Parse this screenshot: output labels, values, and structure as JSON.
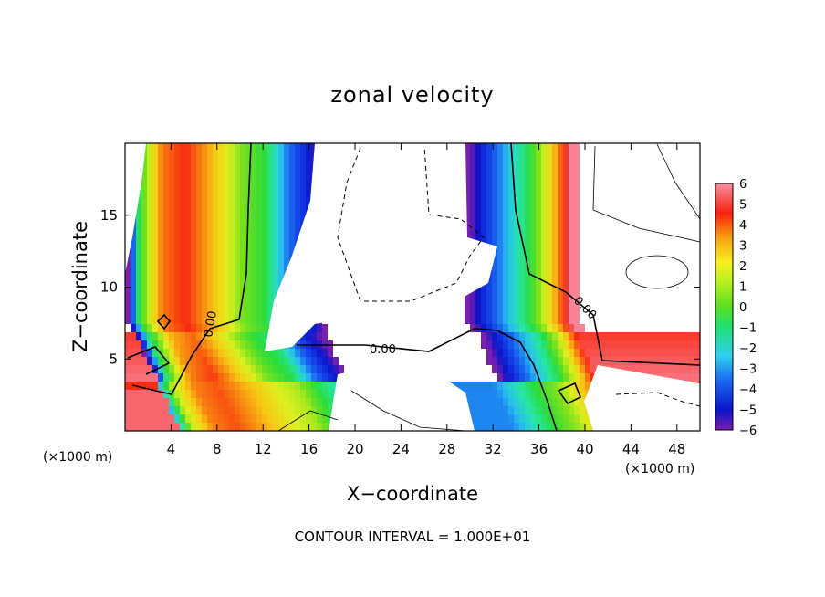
{
  "chart_data": {
    "type": "heatmap",
    "title": "zonal velocity",
    "xlabel": "X−coordinate",
    "ylabel": "Z−coordinate",
    "x_unit_left": "(×1000 m)",
    "x_unit_right": "(×1000 m)",
    "xlim": [
      0,
      50
    ],
    "ylim": [
      0,
      20
    ],
    "xticks": [
      "4",
      "8",
      "12",
      "16",
      "20",
      "24",
      "28",
      "32",
      "36",
      "40",
      "44",
      "48"
    ],
    "yticks": [
      "5",
      "10",
      "15"
    ],
    "colorbar": {
      "range": [
        -6,
        6
      ],
      "ticks": [
        "6",
        "5",
        "4",
        "3",
        "2",
        "1",
        "0",
        "−1",
        "−2",
        "−3",
        "−4",
        "−5",
        "−6"
      ]
    },
    "contour_labels": [
      "0.00",
      "0.00",
      "0.00"
    ],
    "footer": "CONTOUR INTERVAL = 1.000E+01",
    "field_knots": [
      {
        "x": 0,
        "v": -6
      },
      {
        "x": 1,
        "v": 0
      },
      {
        "x": 3,
        "v": 4
      },
      {
        "x": 5,
        "v": 5
      },
      {
        "x": 7.5,
        "v": 3
      },
      {
        "x": 10,
        "v": 1
      },
      {
        "x": 12,
        "v": 0
      },
      {
        "x": 14,
        "v": -3
      },
      {
        "x": 16,
        "v": -5
      },
      {
        "x": 17.5,
        "v": -7
      },
      {
        "x": 29,
        "v": -7
      },
      {
        "x": 30.5,
        "v": -5
      },
      {
        "x": 33,
        "v": -2
      },
      {
        "x": 35,
        "v": 0
      },
      {
        "x": 37,
        "v": 3
      },
      {
        "x": 38.5,
        "v": 6
      },
      {
        "x": 40,
        "v": 7
      },
      {
        "x": 50,
        "v": 7
      }
    ]
  }
}
